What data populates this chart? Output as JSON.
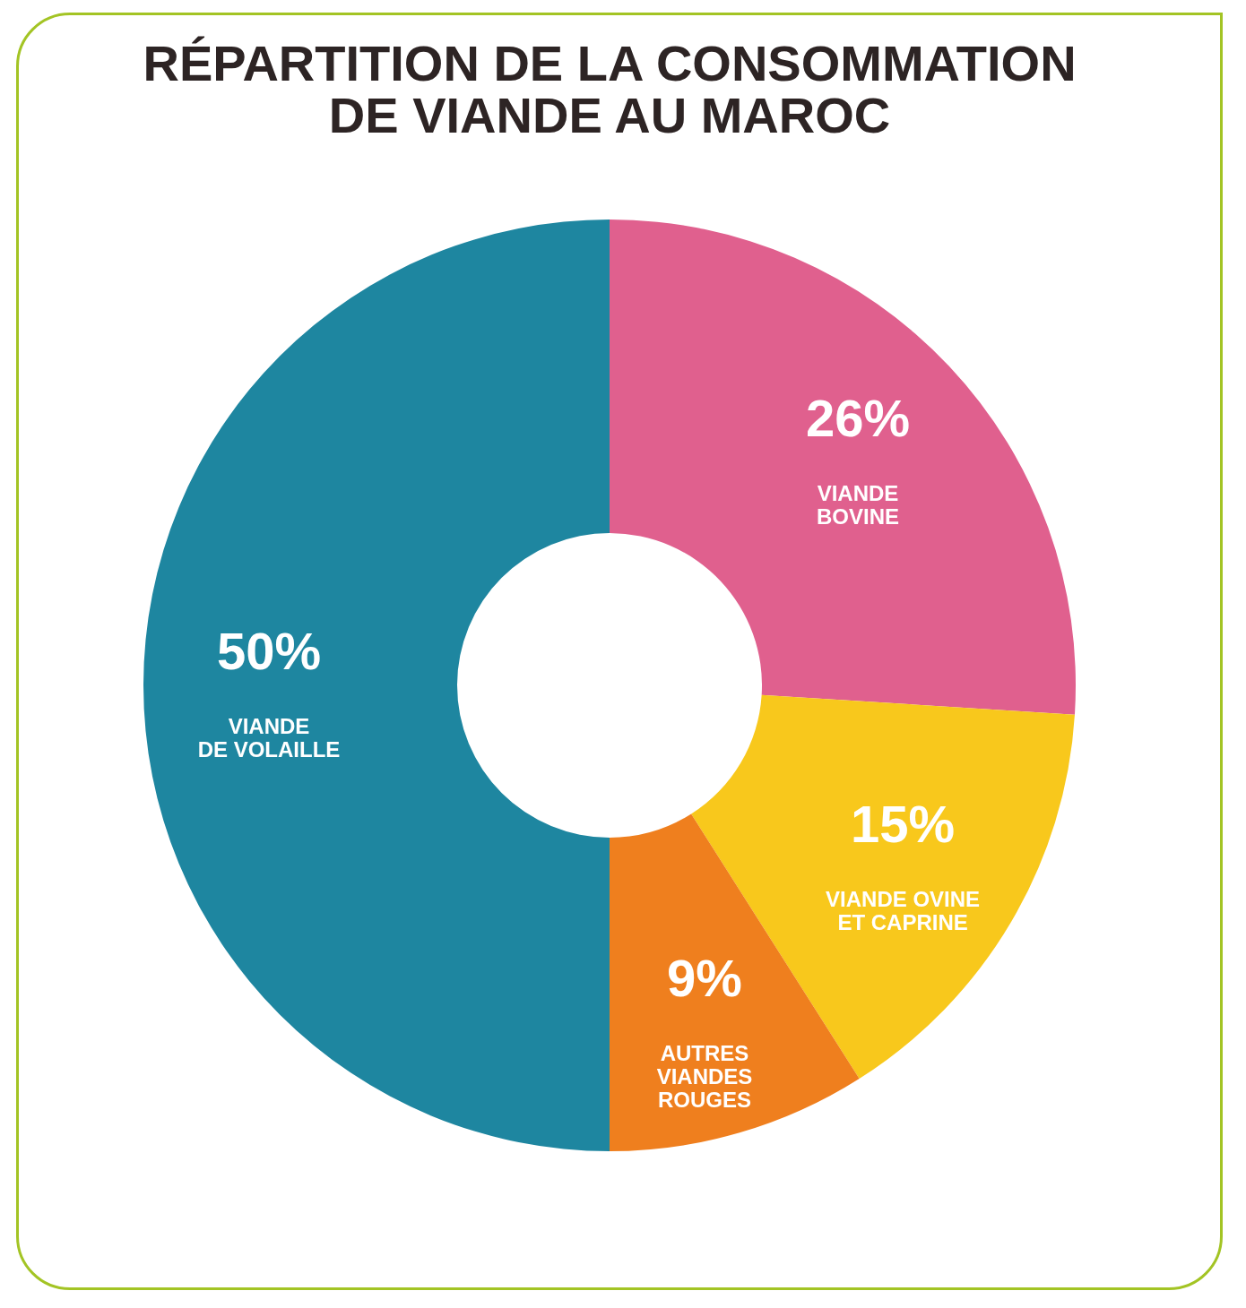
{
  "chart_data": {
    "type": "donut",
    "title": "RÉPARTITION DE LA CONSOMMATION\nDE VIANDE AU MAROC",
    "categories": [
      "VIANDE\nBOVINE",
      "VIANDE OVINE\nET CAPRINE",
      "AUTRES\nVIANDES\nROUGES",
      "VIANDE\nDE VOLAILLE"
    ],
    "values": [
      26,
      15,
      9,
      50
    ],
    "colors": [
      "#e0608e",
      "#f8c81c",
      "#ef7f1e",
      "#1e86a0"
    ],
    "value_labels": [
      "26%",
      "15%",
      "9%",
      "50%"
    ]
  }
}
